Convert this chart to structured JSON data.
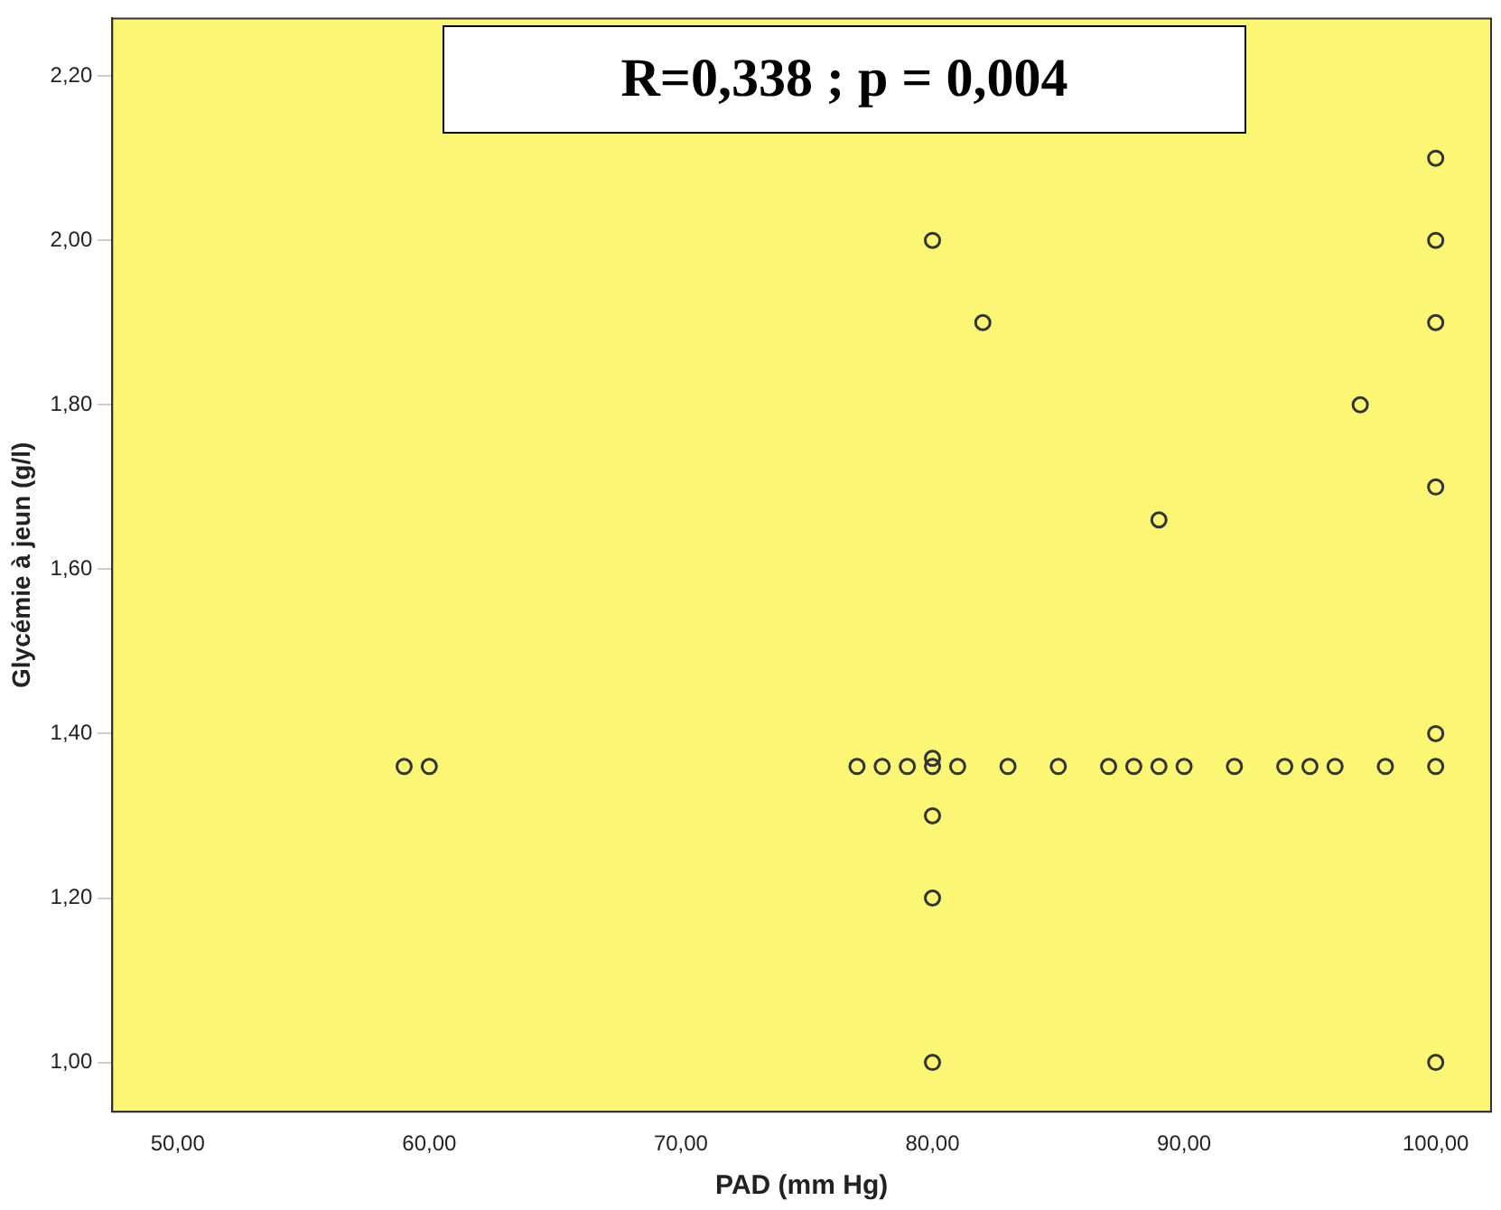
{
  "chart_data": {
    "type": "scatter",
    "xlabel": "PAD (mm Hg)",
    "ylabel": "Glycémie à jeun (g/l)",
    "annotations": [
      "R=0,338 ; p = 0,004"
    ],
    "xlim": [
      47.4,
      102.2
    ],
    "ylim": [
      0.94,
      2.27
    ],
    "xticks": [
      {
        "value": 50,
        "label": "50,00"
      },
      {
        "value": 60,
        "label": "60,00"
      },
      {
        "value": 70,
        "label": "70,00"
      },
      {
        "value": 80,
        "label": "80,00"
      },
      {
        "value": 90,
        "label": "90,00"
      },
      {
        "value": 100,
        "label": "100,00"
      }
    ],
    "yticks": [
      {
        "value": 1.0,
        "label": "1,00"
      },
      {
        "value": 1.2,
        "label": "1,20"
      },
      {
        "value": 1.4,
        "label": "1,40"
      },
      {
        "value": 1.6,
        "label": "1,60"
      },
      {
        "value": 1.8,
        "label": "1,80"
      },
      {
        "value": 2.0,
        "label": "2,00"
      },
      {
        "value": 2.2,
        "label": "2,20"
      }
    ],
    "grid": false,
    "legend": false,
    "marker": "circle",
    "series": [
      {
        "color": "#333333",
        "x": [
          59,
          60,
          77,
          78,
          79,
          80,
          81,
          83,
          85,
          87,
          88,
          89,
          90,
          92,
          94,
          95,
          96,
          98,
          100,
          80,
          100,
          80,
          80,
          80,
          100,
          80,
          82,
          100,
          100,
          100,
          100,
          97,
          89
        ],
        "values": [
          1.36,
          1.36,
          1.36,
          1.36,
          1.36,
          1.36,
          1.36,
          1.36,
          1.36,
          1.36,
          1.36,
          1.36,
          1.36,
          1.36,
          1.36,
          1.36,
          1.36,
          1.36,
          1.36,
          1.37,
          1.4,
          1.3,
          1.2,
          1.0,
          1.0,
          2.0,
          1.9,
          2.1,
          2.0,
          1.9,
          1.7,
          1.8,
          1.66
        ]
      }
    ]
  }
}
